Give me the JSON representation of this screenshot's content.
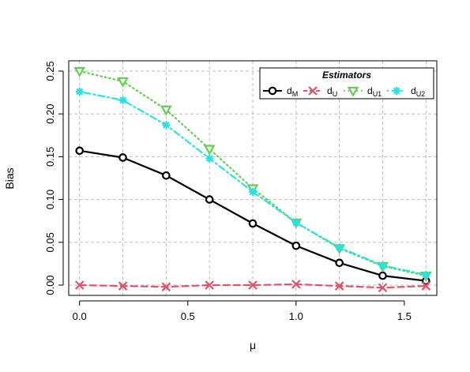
{
  "chart_data": {
    "type": "line",
    "title": "",
    "xlabel": "μ",
    "ylabel": "Bias",
    "xlim": [
      -0.05,
      1.65
    ],
    "ylim": [
      -0.012,
      0.262
    ],
    "x_ticks": [
      0.0,
      0.5,
      1.0,
      1.5
    ],
    "x_tick_labels": [
      "0.0",
      "0.5",
      "1.0",
      "1.5"
    ],
    "y_ticks": [
      0.0,
      0.05,
      0.1,
      0.15,
      0.2,
      0.25
    ],
    "y_tick_labels": [
      "0.00",
      "0.05",
      "0.10",
      "0.15",
      "0.20",
      "0.25"
    ],
    "grid": true,
    "legend": {
      "title": "Estimators",
      "position": "top-right",
      "entries": [
        {
          "base": "d",
          "sub": "M"
        },
        {
          "base": "d",
          "sub": "U"
        },
        {
          "base": "d",
          "sub": "U1"
        },
        {
          "base": "d",
          "sub": "U2"
        }
      ]
    },
    "x": [
      0.0,
      0.2,
      0.4,
      0.6,
      0.8,
      1.0,
      1.2,
      1.4,
      1.6
    ],
    "series": [
      {
        "key": "dM",
        "color": "#000000",
        "marker": "circle",
        "line": "solid",
        "values": [
          0.157,
          0.149,
          0.128,
          0.1,
          0.072,
          0.046,
          0.026,
          0.011,
          0.005
        ]
      },
      {
        "key": "dU",
        "color": "#DF536B",
        "marker": "cross",
        "line": "dashed",
        "values": [
          0.0,
          -0.001,
          -0.002,
          0.0,
          0.0,
          0.001,
          -0.001,
          -0.003,
          -0.001
        ]
      },
      {
        "key": "dU1",
        "color": "#61D04F",
        "marker": "triangle-down",
        "line": "dotted",
        "values": [
          0.25,
          0.238,
          0.205,
          0.159,
          0.113,
          0.073,
          0.043,
          0.022,
          0.011
        ]
      },
      {
        "key": "dU2",
        "color": "#28E2E5",
        "marker": "asterisk",
        "line": "dotdash",
        "values": [
          0.226,
          0.216,
          0.187,
          0.148,
          0.109,
          0.073,
          0.044,
          0.023,
          0.012
        ]
      }
    ]
  }
}
